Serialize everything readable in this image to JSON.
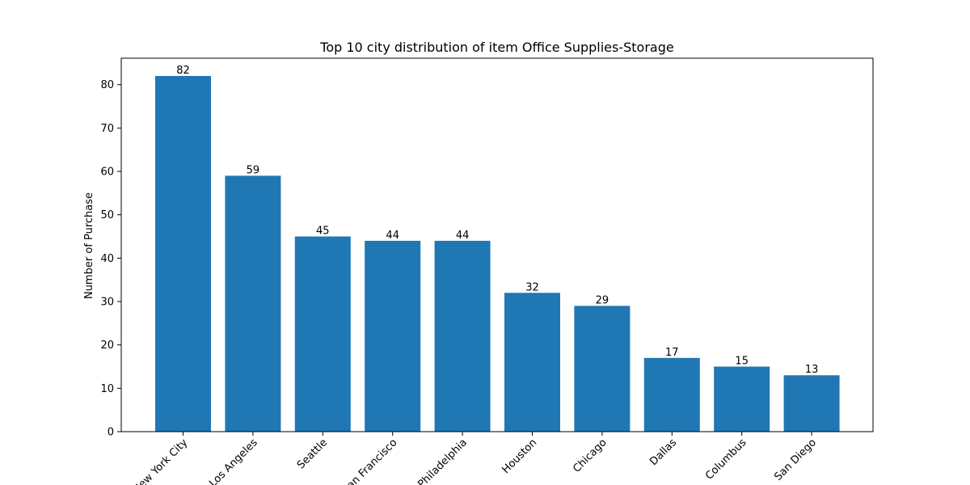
{
  "chart_data": {
    "type": "bar",
    "title": "Top 10 city distribution of item Office Supplies-Storage",
    "xlabel": "",
    "ylabel": "Number of Purchase",
    "categories": [
      "New York City",
      "Los Angeles",
      "Seattle",
      "San Francisco",
      "Philadelphia",
      "Houston",
      "Chicago",
      "Dallas",
      "Columbus",
      "San Diego"
    ],
    "values": [
      82,
      59,
      45,
      44,
      44,
      32,
      29,
      17,
      15,
      13
    ],
    "yticks": [
      0,
      10,
      20,
      30,
      40,
      50,
      60,
      70,
      80
    ],
    "ylim": [
      0,
      86.1
    ],
    "bar_color": "#1f77b4",
    "grid": false,
    "legend": "none"
  }
}
